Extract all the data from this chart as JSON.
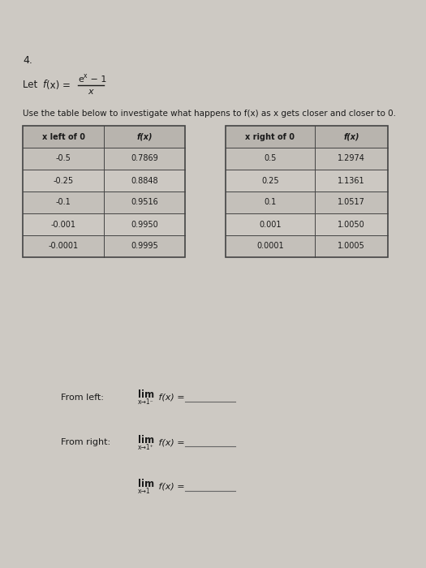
{
  "page_bg": "#cdc9c3",
  "problem_number": "4.",
  "instruction": "Use the table below to investigate what happens to f(x) as x gets closer and closer to 0.",
  "left_table_headers": [
    "x left of 0",
    "f(x)"
  ],
  "left_table_data": [
    [
      "-0.5",
      "0.7869"
    ],
    [
      "-0.25",
      "0.8848"
    ],
    [
      "-0.1",
      "0.9516"
    ],
    [
      "-0.001",
      "0.9950"
    ],
    [
      "-0.0001",
      "0.9995"
    ]
  ],
  "right_table_headers": [
    "x right of 0",
    "f(x)"
  ],
  "right_table_data": [
    [
      "0.5",
      "1.2974"
    ],
    [
      "0.25",
      "1.1361"
    ],
    [
      "0.1",
      "1.0517"
    ],
    [
      "0.001",
      "1.0050"
    ],
    [
      "0.0001",
      "1.0005"
    ]
  ],
  "from_left_label": "From left:",
  "from_right_label": "From right:",
  "table_border_color": "#444444",
  "table_header_bg": "#b8b4ae",
  "table_row_bg_odd": "#c4c0ba",
  "table_row_bg_even": "#ccc8c2",
  "text_color": "#1a1a1a",
  "line_color": "#666666"
}
